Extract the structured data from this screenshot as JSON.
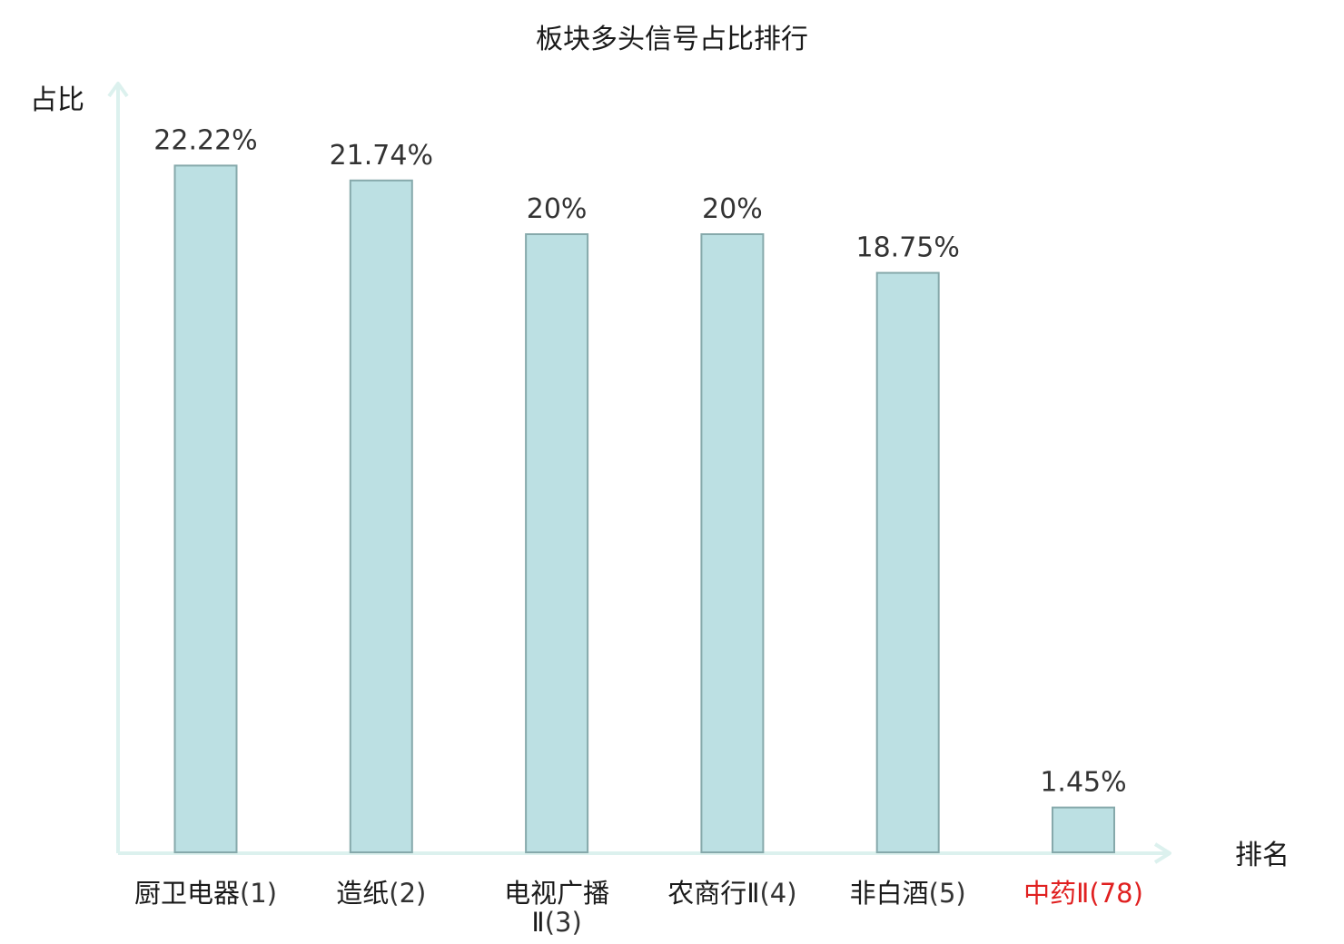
{
  "chart_data": {
    "type": "bar",
    "title": "板块多头信号占比排行",
    "ylabel": "占比",
    "xlabel": "排名",
    "categories": [
      {
        "name": "厨卫电器",
        "rank": "(1)",
        "value": 22.22,
        "label": "22.22%",
        "highlight": false
      },
      {
        "name": "造纸",
        "rank": "(2)",
        "value": 21.74,
        "label": "21.74%",
        "highlight": false
      },
      {
        "name": "电视广播Ⅱ",
        "rank": "(3)",
        "value": 20,
        "label": "20%",
        "highlight": false
      },
      {
        "name": "农商行Ⅱ",
        "rank": "(4)",
        "value": 20,
        "label": "20%",
        "highlight": false
      },
      {
        "name": "非白酒",
        "rank": "(5)",
        "value": 18.75,
        "label": "18.75%",
        "highlight": false
      },
      {
        "name": "中药Ⅱ",
        "rank": "(78)",
        "value": 1.45,
        "label": "1.45%",
        "highlight": true
      }
    ],
    "ylim": [
      0,
      25
    ],
    "grid": false,
    "colors": {
      "bar_fill": "#bce0e3",
      "bar_stroke": "#86a9ab",
      "axis": "#dcf1ee",
      "highlight_text": "#e02020",
      "normal_text": "#1a1a1a"
    }
  }
}
